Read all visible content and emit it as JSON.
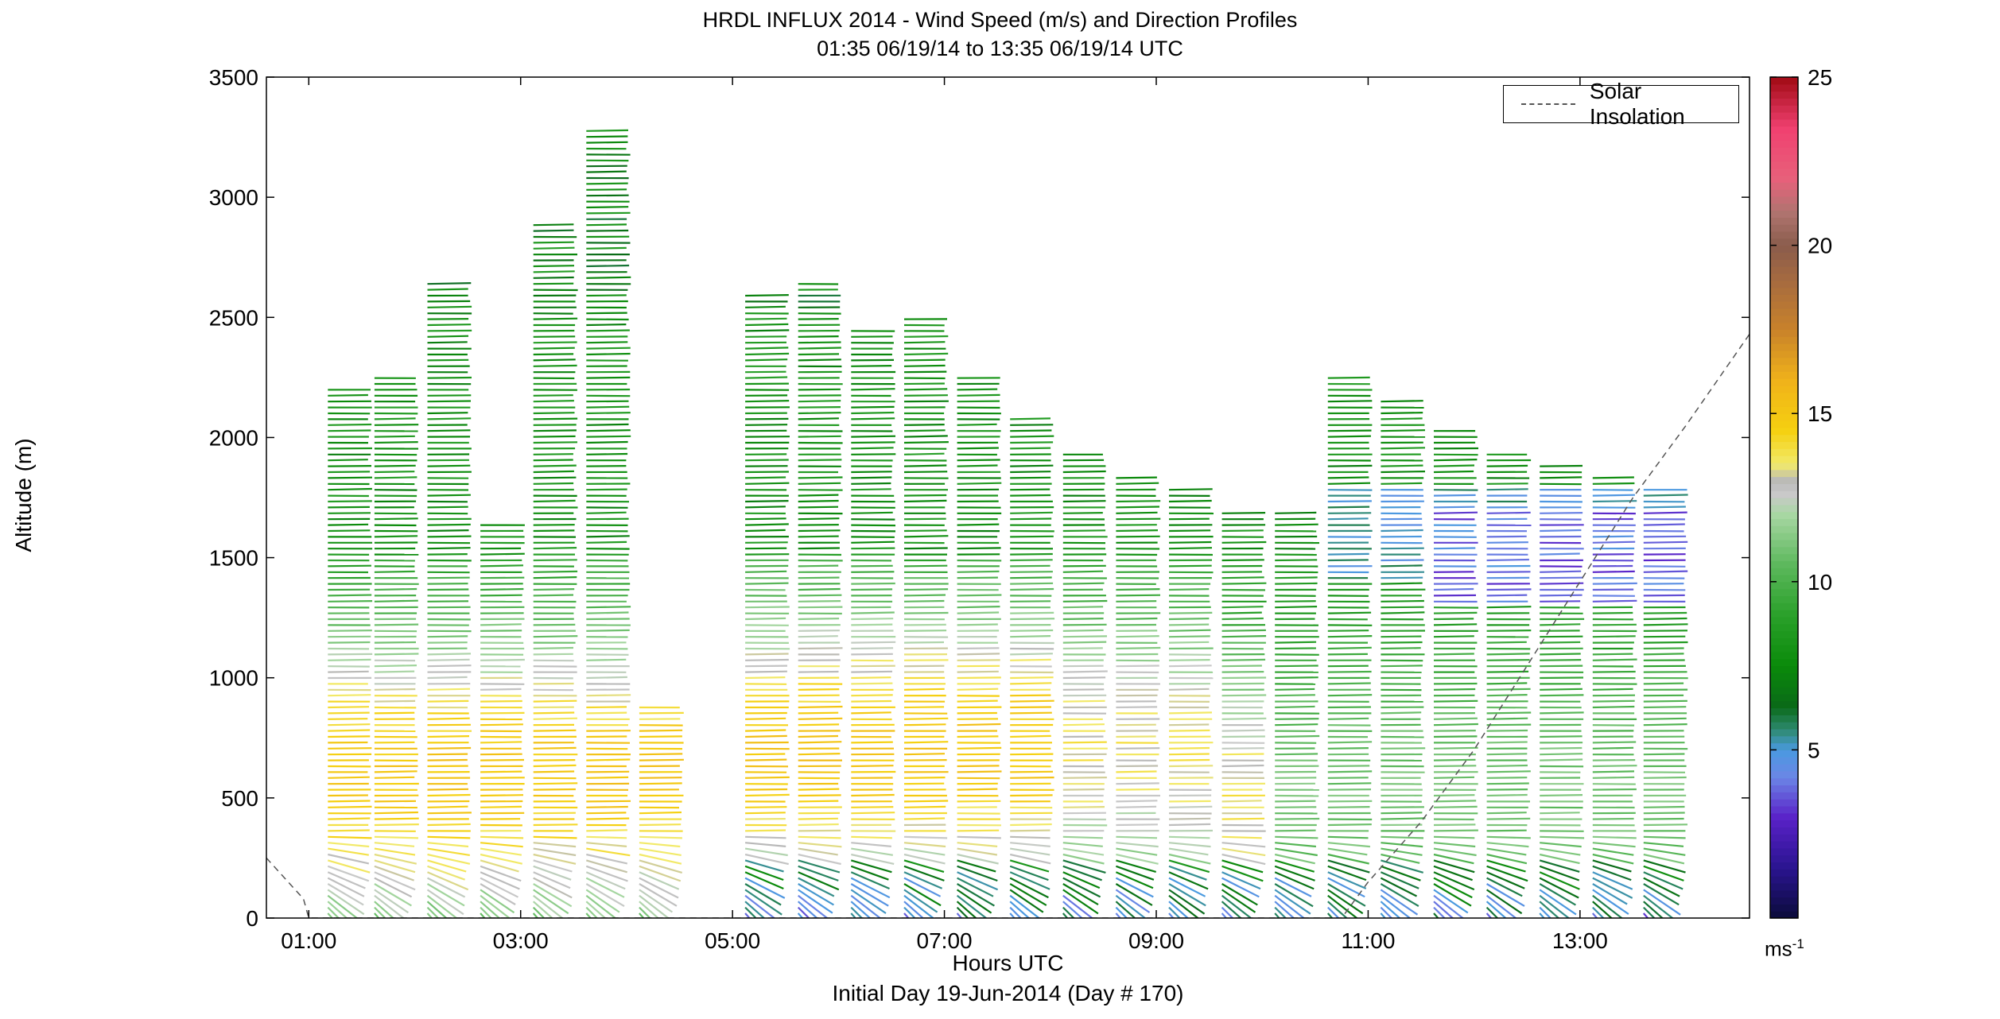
{
  "chart_data": {
    "type": "wind-barb-profile",
    "title": "HRDL INFLUX 2014 - Wind Speed (m/s) and Direction Profiles",
    "subtitle": "01:35 06/19/14 to 13:35 06/19/14  UTC",
    "xlabel": "Hours UTC",
    "xlabel2": "Initial Day 19-Jun-2014 (Day # 170)",
    "ylabel": "Altitude (m)",
    "xlim": [
      0.6,
      14.6
    ],
    "ylim": [
      0,
      3500
    ],
    "x_ticks": [
      1,
      3,
      5,
      7,
      9,
      11,
      13
    ],
    "x_tick_labels": [
      "01:00",
      "03:00",
      "05:00",
      "07:00",
      "09:00",
      "11:00",
      "13:00"
    ],
    "y_ticks": [
      0,
      500,
      1000,
      1500,
      2000,
      2500,
      3000,
      3500
    ],
    "y_tick_labels": [
      "0",
      "500",
      "1000",
      "1500",
      "2000",
      "2500",
      "3000",
      "3500"
    ],
    "legend": {
      "label": "Solar Insolation",
      "placement": "top-right",
      "style": "dashed"
    },
    "colorbar": {
      "min": 0,
      "max": 25,
      "ticks": [
        5,
        10,
        15,
        20,
        25
      ],
      "tick_labels": [
        "5",
        "10",
        "15",
        "20",
        "25"
      ],
      "unit": "ms",
      "unit_exp": "-1",
      "stops": [
        [
          0,
          "#0b0b3a"
        ],
        [
          1.5,
          "#2a1490"
        ],
        [
          3,
          "#5a22c8"
        ],
        [
          4.2,
          "#6b86e6"
        ],
        [
          5,
          "#4a9ae0"
        ],
        [
          5.6,
          "#2e8a70"
        ],
        [
          6.3,
          "#0a6a18"
        ],
        [
          7.5,
          "#0a8a0a"
        ],
        [
          9,
          "#2aa02a"
        ],
        [
          10.5,
          "#5cb85c"
        ],
        [
          12,
          "#a8d7a3"
        ],
        [
          12.6,
          "#c9c9c9"
        ],
        [
          13,
          "#b9b9b9"
        ],
        [
          13.5,
          "#f2ea6a"
        ],
        [
          14.5,
          "#f5d010"
        ],
        [
          16,
          "#f0b21a"
        ],
        [
          17.5,
          "#c8822a"
        ],
        [
          19,
          "#a56a40"
        ],
        [
          20,
          "#8a5c4c"
        ],
        [
          21,
          "#b07470"
        ],
        [
          22,
          "#e8607a"
        ],
        [
          23.5,
          "#f04070"
        ],
        [
          25,
          "#a00a14"
        ]
      ]
    },
    "profile_times": [
      1.18,
      1.62,
      2.12,
      2.62,
      3.12,
      3.62,
      4.12,
      4.62,
      5.12,
      5.62,
      6.12,
      6.62,
      7.12,
      7.62,
      8.12,
      8.62,
      9.12,
      9.62,
      10.12,
      10.62,
      11.12,
      11.62,
      12.12,
      12.62,
      13.12,
      13.6
    ],
    "profile_tops": [
      2200,
      2250,
      2650,
      1650,
      2900,
      3300,
      900,
      0,
      2600,
      2650,
      2450,
      2500,
      2250,
      2100,
      1950,
      1850,
      1800,
      1700,
      1700,
      2250,
      2150,
      2050,
      1950,
      1900,
      1850,
      1800
    ],
    "solar_insolation": [
      [
        0.6,
        250
      ],
      [
        0.95,
        80
      ],
      [
        1.0,
        0
      ],
      [
        10.75,
        0
      ],
      [
        11.0,
        150
      ],
      [
        11.5,
        400
      ],
      [
        12.0,
        700
      ],
      [
        12.5,
        1050
      ],
      [
        13.0,
        1400
      ],
      [
        13.5,
        1750
      ],
      [
        14.0,
        2050
      ],
      [
        14.6,
        2430
      ]
    ]
  }
}
